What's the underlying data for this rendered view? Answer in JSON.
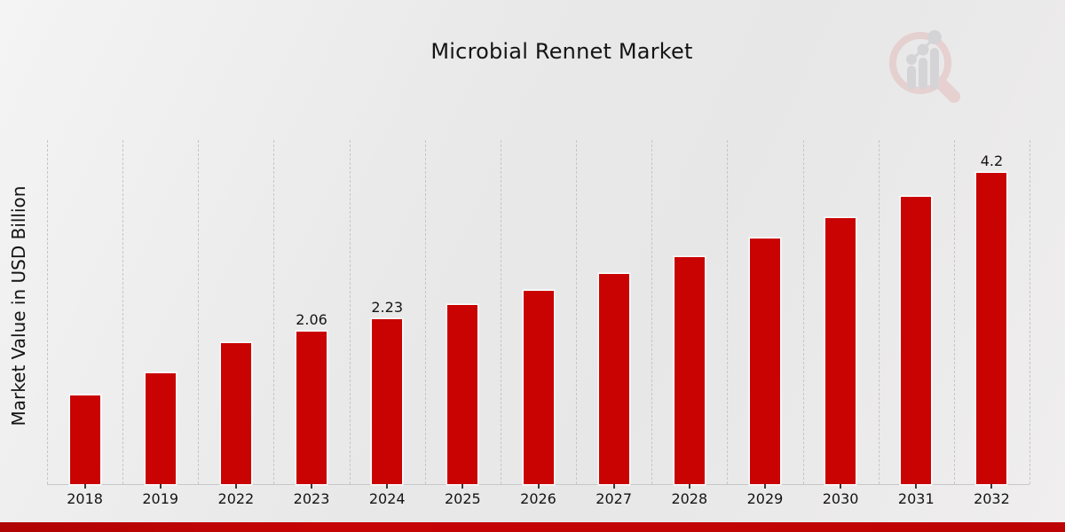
{
  "title": "Microbial Rennet Market",
  "ylabel": "Market Value in USD Billion",
  "watermark_icon": "magnifier-bar-chart-logo",
  "colors": {
    "bar": "#c90202",
    "bar_stroke": "#ffffff",
    "accent_strip": "#bd0303",
    "gridline": "#c6c6c6",
    "axis_line": "#c7c7c7",
    "text": "#141414",
    "logo_ring": "#e3bcbc",
    "logo_bars": "#c3c4ca"
  },
  "chart_data": {
    "type": "bar",
    "title": "Microbial Rennet Market",
    "xlabel": "",
    "ylabel": "Market Value in USD Billion",
    "categories": [
      "2018",
      "2019",
      "2022",
      "2023",
      "2024",
      "2025",
      "2026",
      "2027",
      "2028",
      "2029",
      "2030",
      "2031",
      "2032"
    ],
    "values": [
      1.2,
      1.5,
      1.9,
      2.06,
      2.23,
      2.41,
      2.61,
      2.83,
      3.06,
      3.31,
      3.59,
      3.88,
      4.2
    ],
    "value_labels": [
      "",
      "",
      "",
      "2.06",
      "2.23",
      "",
      "",
      "",
      "",
      "",
      "",
      "",
      "4.2"
    ],
    "ylim": [
      0,
      4.64
    ],
    "y_axis_ticks": "none",
    "grid": "vertical dashed separators between categories",
    "legend": "none",
    "bar_color": "#c90202"
  }
}
